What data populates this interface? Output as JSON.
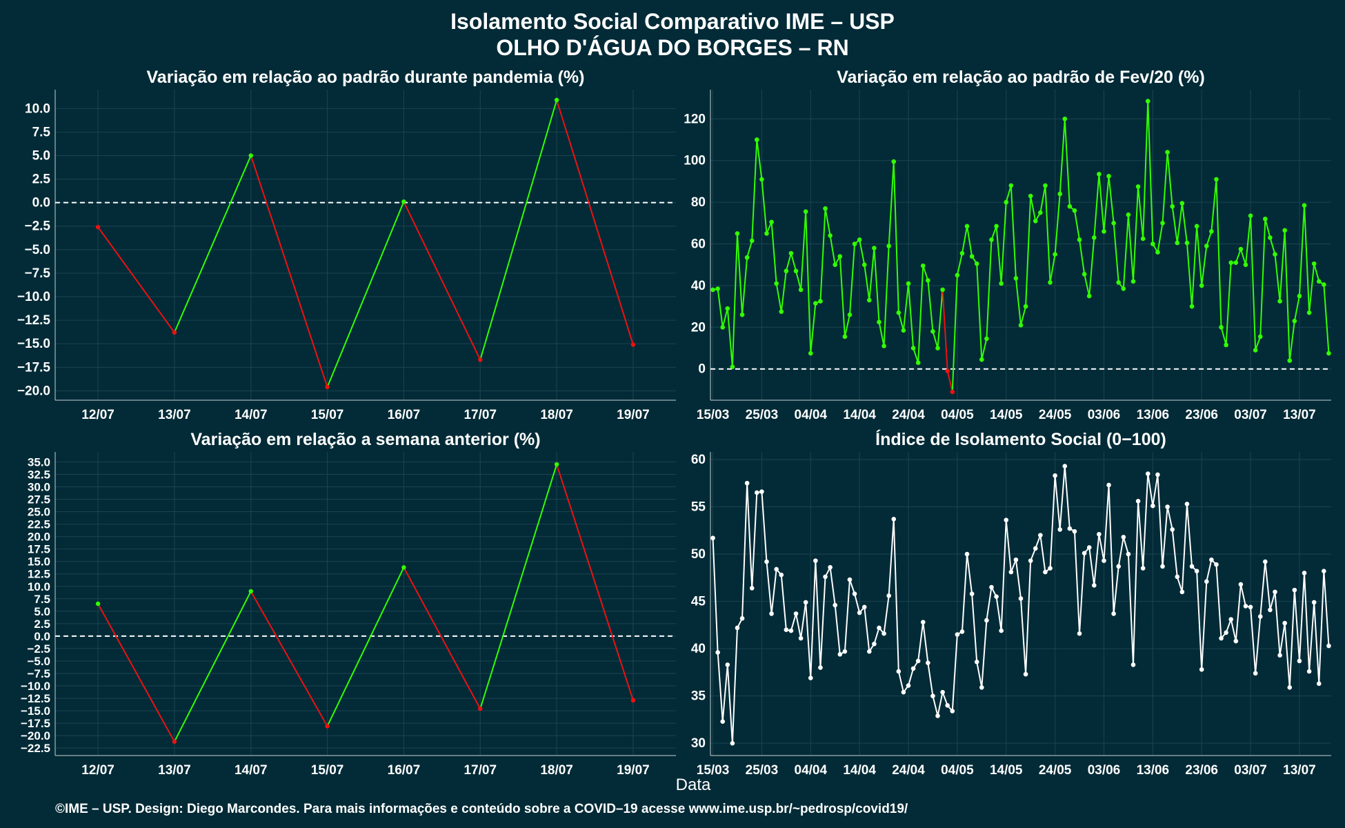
{
  "title_line1": "Isolamento Social Comparativo IME – USP",
  "title_line2": "OLHO D'ÁGUA DO BORGES – RN",
  "xlabel": "Data",
  "footer": "©IME – USP. Design: Diego Marcondes. Para mais informações e conteúdo sobre a COVID–19 acesse www.ime.usp.br/~pedrosp/covid19/",
  "colors": {
    "background": "#022b37",
    "grid": "#1c4450",
    "up": "#33ff00",
    "down": "#ee1111",
    "index": "#ffffff"
  },
  "chart_data": [
    {
      "type": "line",
      "title": "Variação em relação ao padrão durante pandemia (%)",
      "categories": [
        "12/07",
        "13/07",
        "14/07",
        "15/07",
        "16/07",
        "17/07",
        "18/07",
        "19/07"
      ],
      "values": [
        -2.6,
        -13.8,
        5.0,
        -19.6,
        0.1,
        -16.7,
        10.9,
        -15.1
      ],
      "yticks": [
        10.0,
        7.5,
        5.0,
        2.5,
        0.0,
        -2.5,
        -5.0,
        -7.5,
        -10.0,
        -12.5,
        -15.0,
        -17.5,
        -20.0
      ],
      "ylim": [
        -21.0,
        12.0
      ],
      "reference_line": 0,
      "color_rule": "green when increasing, red when decreasing"
    },
    {
      "type": "line",
      "title": "Variação em relação ao padrão de Fev/20 (%)",
      "x_start": "15/03",
      "x_end": "21/07",
      "xticks": [
        "15/03",
        "25/03",
        "04/04",
        "14/04",
        "24/04",
        "04/05",
        "14/05",
        "24/05",
        "03/06",
        "13/06",
        "23/06",
        "03/07",
        "13/07"
      ],
      "values": [
        38,
        38.5,
        20,
        29,
        1,
        65,
        26,
        53.5,
        61.5,
        110,
        91,
        65,
        70.5,
        41,
        27.5,
        47,
        55.5,
        47,
        38,
        75.5,
        7.5,
        31.5,
        32.5,
        77,
        64,
        50,
        54,
        15.5,
        26,
        60,
        62,
        50,
        33,
        58,
        22.5,
        11,
        59,
        99.5,
        27,
        18.5,
        41,
        10,
        3,
        49.5,
        42.5,
        18,
        10,
        38,
        -1,
        -11,
        45,
        55.5,
        68.5,
        54,
        50.5,
        4.5,
        14.5,
        62,
        68.5,
        41,
        80,
        88,
        43.5,
        21,
        30,
        83,
        71,
        75,
        88,
        41.5,
        55,
        84,
        120,
        78,
        76,
        62,
        45.5,
        35,
        63,
        93.5,
        66,
        92.5,
        70,
        41.5,
        38.5,
        74,
        42,
        87.5,
        62.5,
        128.5,
        60,
        56,
        70,
        104,
        78,
        60.5,
        79.5,
        60.5,
        30,
        68.5,
        40,
        59,
        66,
        91,
        20,
        11.5,
        51,
        51,
        57.5,
        50,
        73.5,
        9,
        15.5,
        72,
        63,
        55,
        32.5,
        66.5,
        4,
        23,
        35,
        78.5,
        27,
        50.5,
        42,
        40.5,
        7.5
      ],
      "yticks": [
        120,
        100,
        80,
        60,
        40,
        20,
        0
      ],
      "ylim": [
        -15,
        134
      ],
      "reference_line": 0,
      "color_rule": "green when above 0, red when below 0"
    },
    {
      "type": "line",
      "title": "Variação em relação a semana anterior (%)",
      "categories": [
        "12/07",
        "13/07",
        "14/07",
        "15/07",
        "16/07",
        "17/07",
        "18/07",
        "19/07"
      ],
      "values": [
        6.5,
        -21.2,
        9.0,
        -18.1,
        13.8,
        -14.6,
        34.5,
        -12.9
      ],
      "yticks": [
        35.0,
        32.5,
        30.0,
        27.5,
        25.0,
        22.5,
        20.0,
        17.5,
        15.0,
        12.5,
        10.0,
        7.5,
        5.0,
        2.5,
        0.0,
        -2.5,
        -5.0,
        -7.5,
        -10.0,
        -12.5,
        -15.0,
        -17.5,
        -20.0,
        -22.5
      ],
      "ylim": [
        -24.0,
        37.0
      ],
      "reference_line": 0,
      "color_rule": "green when increasing, red when decreasing"
    },
    {
      "type": "line",
      "title": "Índice de Isolamento Social (0−100)",
      "x_start": "15/03",
      "x_end": "21/07",
      "xticks": [
        "15/03",
        "25/03",
        "04/04",
        "14/04",
        "24/04",
        "04/05",
        "14/05",
        "24/05",
        "03/06",
        "13/06",
        "23/06",
        "03/07",
        "13/07"
      ],
      "values": [
        51.7,
        39.6,
        32.3,
        38.3,
        30.0,
        42.2,
        43.2,
        57.5,
        46.4,
        56.5,
        56.6,
        49.2,
        43.7,
        48.4,
        47.8,
        42.0,
        41.9,
        43.7,
        41.1,
        44.9,
        36.9,
        49.3,
        38.0,
        47.6,
        48.6,
        44.6,
        39.4,
        39.7,
        47.3,
        45.8,
        43.8,
        44.4,
        39.7,
        40.5,
        42.2,
        41.6,
        45.6,
        53.7,
        37.6,
        35.4,
        36.1,
        37.9,
        38.7,
        42.8,
        38.5,
        35.0,
        32.9,
        35.4,
        34.0,
        33.4,
        41.5,
        41.8,
        50.0,
        45.8,
        38.6,
        35.9,
        43.0,
        46.5,
        45.5,
        41.9,
        53.6,
        48.1,
        49.4,
        45.3,
        37.3,
        49.3,
        50.6,
        52.0,
        48.1,
        48.5,
        58.3,
        52.6,
        59.3,
        52.7,
        52.4,
        41.6,
        50.1,
        50.7,
        46.7,
        52.1,
        49.3,
        57.3,
        43.7,
        48.7,
        51.8,
        50.0,
        38.3,
        55.6,
        48.5,
        58.5,
        55.1,
        58.4,
        48.7,
        55.0,
        52.6,
        47.6,
        46.0,
        55.3,
        48.7,
        48.2,
        37.8,
        47.1,
        49.4,
        48.9,
        41.1,
        41.7,
        43.1,
        40.8,
        46.8,
        44.5,
        44.4,
        37.4,
        43.4,
        49.2,
        44.1,
        46.0,
        39.3,
        42.7,
        35.9,
        46.2,
        38.7,
        48.0,
        37.6,
        44.9,
        36.3,
        48.2,
        40.3
      ],
      "yticks": [
        60,
        55,
        50,
        45,
        40,
        35,
        30
      ],
      "ylim": [
        28.7,
        60.8
      ],
      "color": "white"
    }
  ]
}
